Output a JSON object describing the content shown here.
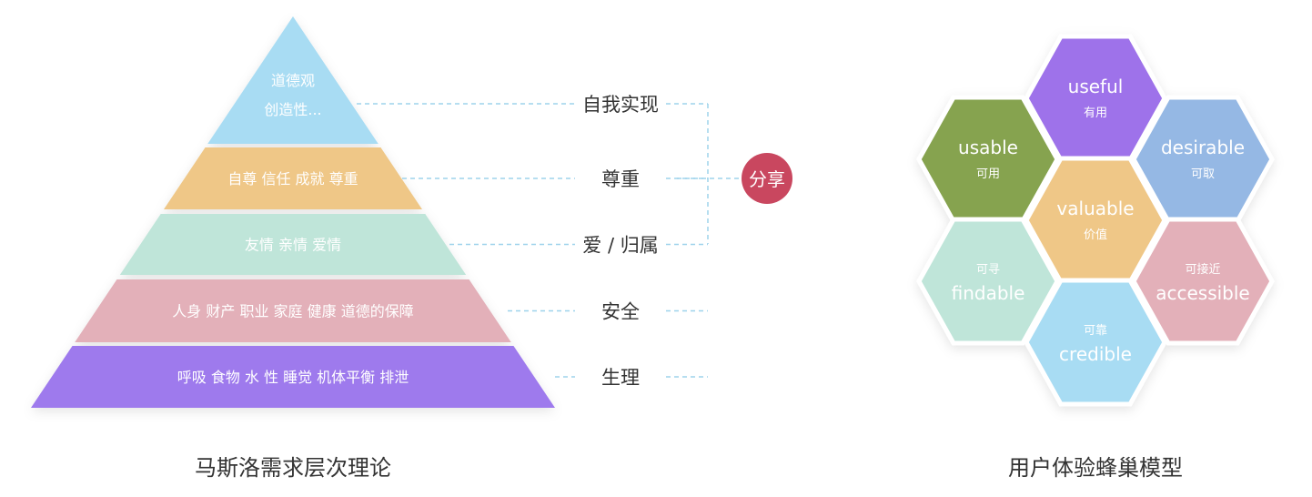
{
  "pyramid": {
    "caption": "马斯洛需求层次理论",
    "share_label": "分享",
    "levels": [
      {
        "lines": [
          "道德观",
          "创造性..."
        ],
        "need": "自我实现",
        "color": "#a8dcf3"
      },
      {
        "lines": [
          "自尊 信任 成就 尊重"
        ],
        "need": "尊重",
        "color": "#efc787"
      },
      {
        "lines": [
          "友情 亲情 爱情"
        ],
        "need": "爱 / 归属",
        "color": "#bfe5d9"
      },
      {
        "lines": [
          "人身 财产 职业 家庭 健康 道德的保障"
        ],
        "need": "安全",
        "color": "#e3b0b9"
      },
      {
        "lines": [
          "呼吸 食物 水 性 睡觉 机体平衡 排泄"
        ],
        "need": "生理",
        "color": "#9e7aed"
      }
    ],
    "share_color": "#c9475f",
    "connector_color": "#9ed3eb"
  },
  "honeycomb": {
    "caption": "用户体验蜂巢模型",
    "cells": [
      {
        "en": "useful",
        "zh": "有用",
        "color": "#9e72ea",
        "order": "en-first"
      },
      {
        "en": "usable",
        "zh": "可用",
        "color": "#86a34f",
        "order": "en-first"
      },
      {
        "en": "desirable",
        "zh": "可取",
        "color": "#95b8e4",
        "order": "en-first"
      },
      {
        "en": "valuable",
        "zh": "价值",
        "color": "#efc787",
        "order": "en-first"
      },
      {
        "en": "findable",
        "zh": "可寻",
        "color": "#bfe5d9",
        "order": "zh-first"
      },
      {
        "en": "accessible",
        "zh": "可接近",
        "color": "#e3b0b9",
        "order": "zh-first"
      },
      {
        "en": "credible",
        "zh": "可靠",
        "color": "#a8dcf3",
        "order": "zh-first"
      }
    ]
  }
}
